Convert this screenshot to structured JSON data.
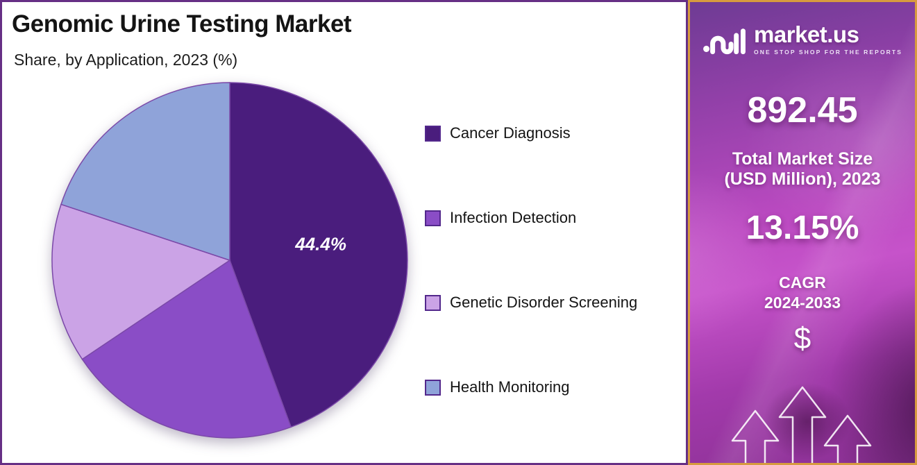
{
  "page": {
    "title": "Genomic Urine Testing Market",
    "subtitle": "Share, by Application, 2023 (%)"
  },
  "chart_data": {
    "type": "pie",
    "title": "Genomic Urine Testing Market",
    "subtitle": "Share, by Application, 2023 (%)",
    "unit": "%",
    "start_angle_deg": 0,
    "direction": "clockwise",
    "legend_position": "right",
    "slices": [
      {
        "name": "Cancer Diagnosis",
        "value": 44.4,
        "label": "44.4%",
        "color": "#4A1D7D"
      },
      {
        "name": "Infection Detection",
        "value": 21.2,
        "label": "",
        "color": "#8A4DC6"
      },
      {
        "name": "Genetic Disorder Screening",
        "value": 14.5,
        "label": "",
        "color": "#CBA3E6"
      },
      {
        "name": "Health Monitoring",
        "value": 19.9,
        "label": "",
        "color": "#8FA3D9"
      }
    ]
  },
  "sidebar": {
    "brand": {
      "name": "market.us",
      "tagline": "ONE STOP SHOP FOR THE REPORTS"
    },
    "market_size": {
      "value": "892.45",
      "label_line1": "Total Market Size",
      "label_line2": "(USD Million), 2023"
    },
    "cagr": {
      "value": "13.15%",
      "label": "CAGR",
      "period": "2024-2033"
    },
    "currency_symbol": "$",
    "icons": [
      "up-arrow",
      "up-arrow",
      "up-arrow"
    ]
  },
  "colors": {
    "panel_border": "#662F85",
    "sidebar_border": "#D79B3E",
    "pie_stroke": "#7B49A8",
    "slice_label_text": "#FFFFFF",
    "title_text": "#141414",
    "sidebar_text": "#FFFFFF"
  }
}
